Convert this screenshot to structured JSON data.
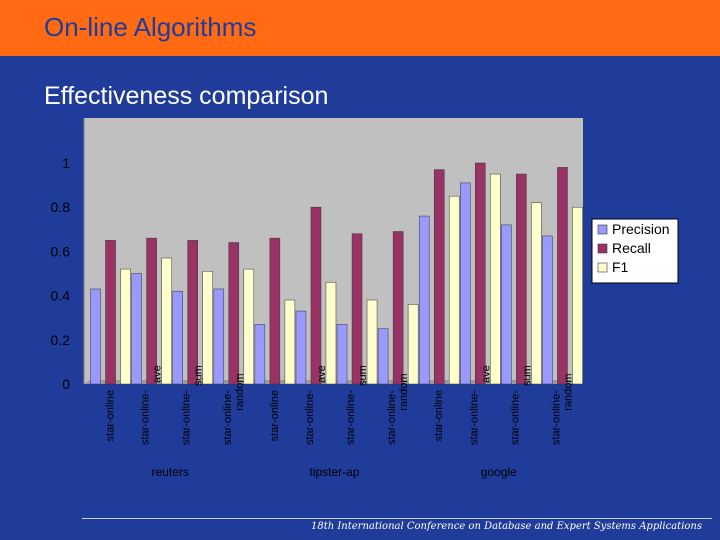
{
  "slide": {
    "title": "On-line Algorithms",
    "subtitle": "Effectiveness comparison",
    "footer": "18th International Conference on Database and Expert Systems Applications"
  },
  "colors": {
    "header_bg": "#ff6a13",
    "slide_bg": "#1f3c9a",
    "plot_bg": "#c0c0c0",
    "precision": "#9999ff",
    "recall": "#993366",
    "f1": "#ffffcc"
  },
  "chart_data": {
    "type": "bar",
    "title": "",
    "xlabel": "",
    "ylabel": "",
    "ylim": [
      0,
      1
    ],
    "yticks": [
      0,
      0.2,
      0.4,
      0.6,
      0.8,
      1
    ],
    "ytick_labels": [
      "0",
      "0.2",
      "0.4",
      "0.6",
      "0.8",
      "1"
    ],
    "grid": false,
    "legend_position": "right",
    "groups": [
      {
        "name": "reuters",
        "categories": [
          "star-online",
          "star-online-ave",
          "star-online-sum",
          "star-online-random"
        ]
      },
      {
        "name": "tipster-ap",
        "categories": [
          "star-online",
          "star-online-ave",
          "star-online-sum",
          "star-online-random"
        ]
      },
      {
        "name": "google",
        "categories": [
          "star-online",
          "star-online-ave",
          "star-online-sum",
          "star-online-random"
        ]
      }
    ],
    "category_label_lines": [
      [
        "star-online"
      ],
      [
        "star-online-",
        "ave"
      ],
      [
        "star-online-",
        "sum"
      ],
      [
        "star-online-",
        "random"
      ],
      [
        "star-online"
      ],
      [
        "star-online-",
        "ave"
      ],
      [
        "star-online-",
        "sum"
      ],
      [
        "star-online-",
        "random"
      ],
      [
        "star-online"
      ],
      [
        "star-online-",
        "ave"
      ],
      [
        "star-online-",
        "sum"
      ],
      [
        "star-online-",
        "random"
      ]
    ],
    "series": [
      {
        "name": "Precision",
        "color": "#9999ff",
        "values": [
          0.43,
          0.5,
          0.42,
          0.43,
          0.27,
          0.33,
          0.27,
          0.25,
          0.76,
          0.91,
          0.72,
          0.67
        ]
      },
      {
        "name": "Recall",
        "color": "#993366",
        "values": [
          0.65,
          0.66,
          0.65,
          0.64,
          0.66,
          0.8,
          0.68,
          0.69,
          0.97,
          1.0,
          0.95,
          0.98
        ]
      },
      {
        "name": "F1",
        "color": "#ffffcc",
        "values": [
          0.52,
          0.57,
          0.51,
          0.52,
          0.38,
          0.46,
          0.38,
          0.36,
          0.85,
          0.95,
          0.82,
          0.8
        ]
      }
    ]
  }
}
